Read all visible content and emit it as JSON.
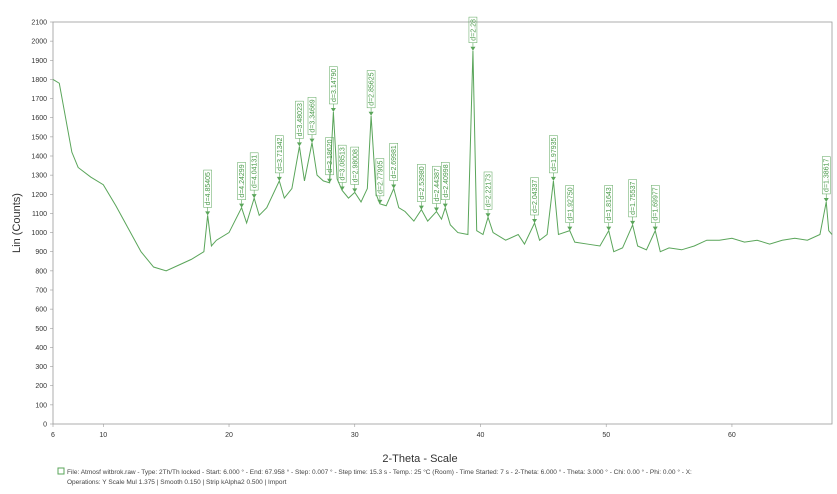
{
  "chart_data": {
    "type": "line",
    "xlabel": "2-Theta - Scale",
    "ylabel": "Lin (Counts)",
    "color": "#5aa55a",
    "xlim": [
      6,
      67.958
    ],
    "xticks": [
      6,
      10,
      20,
      30,
      40,
      50,
      60
    ],
    "ylim": [
      0,
      2100
    ],
    "yticks": [
      0,
      100,
      200,
      300,
      400,
      500,
      600,
      700,
      800,
      900,
      1000,
      1100,
      1200,
      1300,
      1400,
      1500,
      1600,
      1700,
      1800,
      1900,
      2000,
      2100
    ],
    "x": [
      6,
      6.5,
      7,
      7.5,
      8,
      9,
      10,
      11,
      12,
      13,
      14,
      15,
      16,
      17,
      18,
      18.3,
      18.6,
      19,
      20,
      21,
      21.4,
      22,
      22.4,
      23,
      24,
      24.4,
      25,
      25.6,
      26,
      26.6,
      27,
      27.5,
      28,
      28.3,
      28.6,
      29,
      29.5,
      30,
      30.5,
      31,
      31.3,
      31.7,
      32,
      32.5,
      33.1,
      33.5,
      34,
      34.7,
      35.3,
      35.8,
      36.5,
      36.9,
      37.2,
      37.6,
      38.2,
      39,
      39.4,
      39.7,
      40.2,
      40.6,
      41,
      42,
      43,
      43.5,
      44.3,
      44.7,
      45.3,
      45.8,
      46.2,
      47.1,
      47.5,
      48.5,
      49.5,
      50.2,
      50.6,
      51.3,
      52.1,
      52.5,
      53.2,
      53.9,
      54.3,
      55,
      56,
      57,
      58,
      59,
      60,
      61,
      62,
      63,
      64,
      65,
      66,
      67,
      67.5,
      67.7,
      67.958
    ],
    "values": [
      1800,
      1780,
      1600,
      1420,
      1340,
      1290,
      1250,
      1140,
      1020,
      900,
      820,
      800,
      830,
      860,
      900,
      1090,
      930,
      960,
      1000,
      1130,
      1050,
      1180,
      1090,
      1130,
      1270,
      1180,
      1230,
      1450,
      1270,
      1470,
      1300,
      1270,
      1260,
      1630,
      1280,
      1220,
      1180,
      1210,
      1160,
      1230,
      1610,
      1200,
      1150,
      1140,
      1230,
      1130,
      1110,
      1060,
      1120,
      1060,
      1110,
      1070,
      1130,
      1040,
      1000,
      990,
      1950,
      1010,
      990,
      1080,
      1000,
      960,
      990,
      940,
      1050,
      960,
      990,
      1270,
      990,
      1010,
      950,
      940,
      930,
      1010,
      900,
      920,
      1040,
      930,
      910,
      1010,
      900,
      920,
      910,
      930,
      960,
      960,
      970,
      950,
      960,
      940,
      960,
      970,
      960,
      990,
      1160,
      1010,
      990
    ],
    "annotations": [
      {
        "text": "d=4.85405",
        "x": 18.3,
        "y": 1090
      },
      {
        "text": "d=4.24299",
        "x": 21,
        "y": 1130
      },
      {
        "text": "d=4.04131",
        "x": 22,
        "y": 1180
      },
      {
        "text": "d=3.71342",
        "x": 24,
        "y": 1270
      },
      {
        "text": "d=3.48023",
        "x": 25.6,
        "y": 1450
      },
      {
        "text": "d=3.34669",
        "x": 26.6,
        "y": 1470
      },
      {
        "text": "d=3.18620",
        "x": 28,
        "y": 1260
      },
      {
        "text": "d=3.14790",
        "x": 28.3,
        "y": 1630
      },
      {
        "text": "d=3.08513",
        "x": 29,
        "y": 1220
      },
      {
        "text": "d=2.98008",
        "x": 30,
        "y": 1210
      },
      {
        "text": "d=2.85625",
        "x": 31.3,
        "y": 1610
      },
      {
        "text": "d=2.77905",
        "x": 32,
        "y": 1150
      },
      {
        "text": "d=2.69981",
        "x": 33.1,
        "y": 1230
      },
      {
        "text": "d=2.53980",
        "x": 35.3,
        "y": 1120
      },
      {
        "text": "d=2.44387",
        "x": 36.5,
        "y": 1110
      },
      {
        "text": "d=2.40998",
        "x": 37.2,
        "y": 1130
      },
      {
        "text": "d=2.28",
        "x": 39.4,
        "y": 1950
      },
      {
        "text": "d=2.22173",
        "x": 40.6,
        "y": 1080
      },
      {
        "text": "d=2.04337",
        "x": 44.3,
        "y": 1050
      },
      {
        "text": "d=1.97935",
        "x": 45.8,
        "y": 1270
      },
      {
        "text": "d=1.92750",
        "x": 47.1,
        "y": 1010
      },
      {
        "text": "d=1.81643",
        "x": 50.2,
        "y": 1010
      },
      {
        "text": "d=1.75537",
        "x": 52.1,
        "y": 1040
      },
      {
        "text": "d=1.69977",
        "x": 53.9,
        "y": 1010
      },
      {
        "text": "d=1.38617",
        "x": 67.5,
        "y": 1160
      }
    ]
  },
  "file_info": [
    "File: Atmosf witbrok.raw - Type: 2Th/Th locked - Start: 6.000 ° - End: 67.958 ° - Step: 0.007 ° - Step time: 15.3 s - Temp.: 25 °C (Room) - Time Started: 7 s - 2-Theta: 6.000 ° - Theta: 3.000 ° - Chi: 0.00 ° - Phi: 0.00 ° - X:",
    "Operations: Y Scale Mul 1.375 | Smooth 0.150 | Strip kAlpha2 0.500 | Import"
  ]
}
